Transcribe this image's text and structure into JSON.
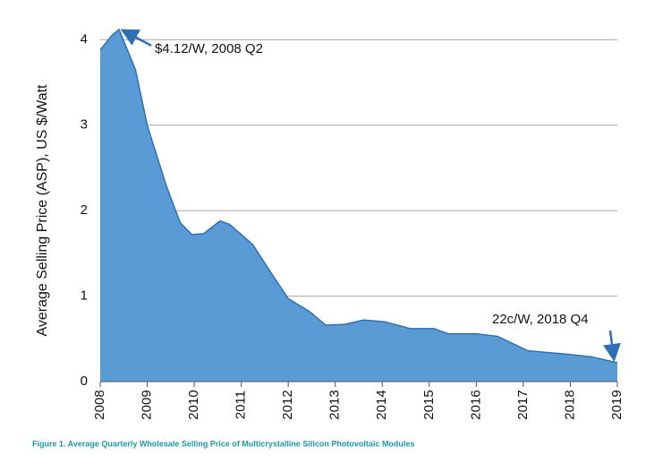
{
  "chart_data": {
    "type": "area",
    "y_label": "Average Selling Price (ASP),  US $/Watt",
    "caption": "Figure 1.  Average Quarterly Wholesale Selling Price of Multicrystalline Silicon Photovoltaic Modules",
    "x": [
      2008,
      2008.25,
      2008.4,
      2008.75,
      2009,
      2009.4,
      2009.7,
      2009.95,
      2010.2,
      2010.55,
      2010.75,
      2011,
      2011.25,
      2011.6,
      2012,
      2012.45,
      2012.8,
      2013.2,
      2013.6,
      2014.05,
      2014.6,
      2015.1,
      2015.4,
      2016,
      2016.45,
      2017.1,
      2017.95,
      2018.45,
      2019
    ],
    "values": [
      3.88,
      4.05,
      4.12,
      3.65,
      3.0,
      2.3,
      1.86,
      1.72,
      1.73,
      1.88,
      1.84,
      1.72,
      1.6,
      1.3,
      0.97,
      0.82,
      0.66,
      0.67,
      0.72,
      0.7,
      0.62,
      0.62,
      0.56,
      0.56,
      0.53,
      0.36,
      0.32,
      0.29,
      0.22
    ],
    "color": "#5b9bd5",
    "line_color": "#2f6fb5",
    "xlim": [
      2008,
      2019
    ],
    "xticks": [
      2008,
      2009,
      2010,
      2011,
      2012,
      2013,
      2014,
      2015,
      2016,
      2017,
      2018,
      2019
    ],
    "ylim": [
      0,
      4.15
    ],
    "yticks": [
      0,
      1,
      2,
      3,
      4
    ],
    "grid": true,
    "annotations": [
      {
        "text": "$4.12/W, 2008 Q2",
        "x": 2008.4,
        "y": 4.12
      },
      {
        "text": "22c/W, 2018 Q4",
        "x": 2019,
        "y": 0.22
      }
    ]
  }
}
